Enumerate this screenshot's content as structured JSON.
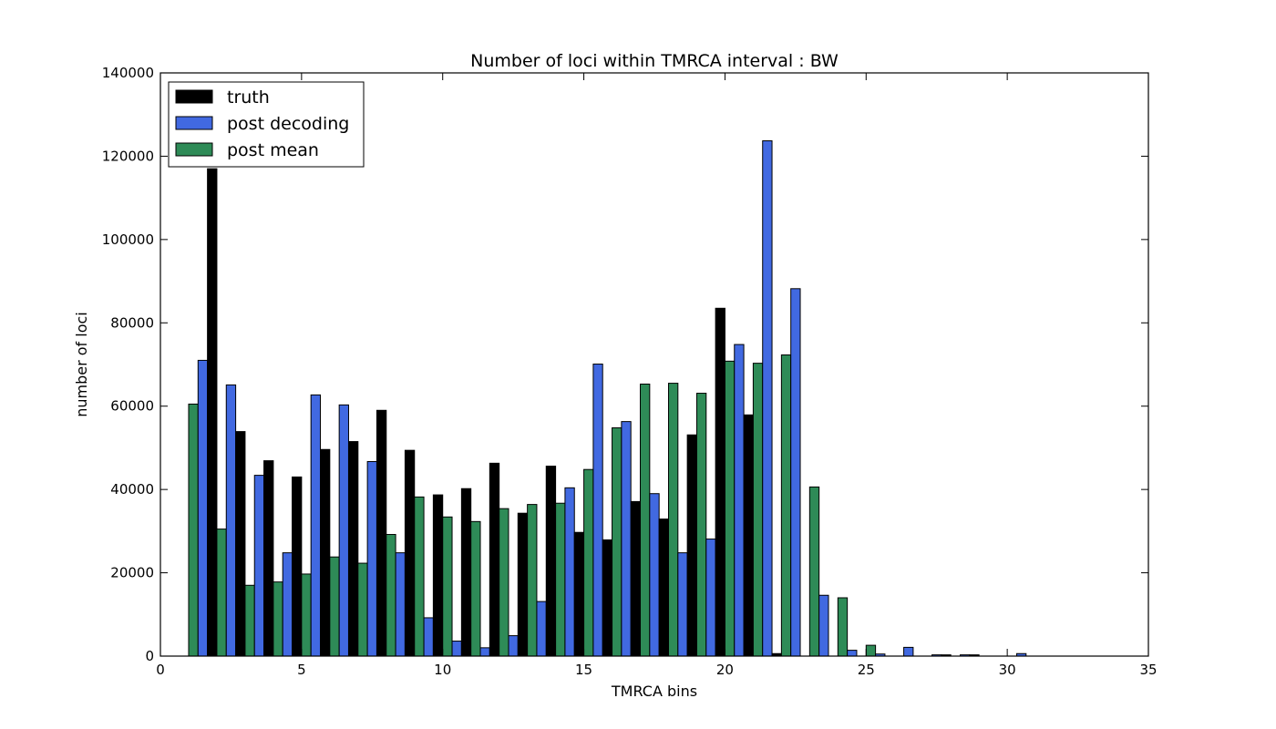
{
  "chart_data": {
    "type": "bar",
    "title": "Number of loci within TMRCA interval : BW",
    "xlabel": "TMRCA bins",
    "ylabel": "number of loci",
    "xlim": [
      0,
      35
    ],
    "ylim": [
      0,
      140000
    ],
    "xticks": [
      "0",
      "5",
      "10",
      "15",
      "20",
      "25",
      "30",
      "35"
    ],
    "yticks": [
      "0",
      "20000",
      "40000",
      "60000",
      "80000",
      "100000",
      "120000",
      "140000"
    ],
    "grid": false,
    "legend_position": "upper left",
    "bins": [
      1,
      2,
      3,
      4,
      5,
      6,
      7,
      8,
      9,
      10,
      11,
      12,
      13,
      14,
      15,
      16,
      17,
      18,
      19,
      20,
      21,
      22,
      23,
      24,
      25,
      26,
      27,
      28,
      29,
      30,
      31,
      32,
      33
    ],
    "series": [
      {
        "name": "post mean",
        "color": "#2e8b57",
        "values": [
          60500,
          30500,
          17000,
          17800,
          19700,
          23800,
          22300,
          29200,
          38200,
          33400,
          32300,
          35400,
          36400,
          36700,
          44800,
          54800,
          65300,
          65500,
          63100,
          70800,
          70300,
          72300,
          40600,
          14000,
          2600,
          0,
          0,
          0,
          0,
          0,
          0,
          0,
          0
        ]
      },
      {
        "name": "post decoding",
        "color": "#4169e1",
        "values": [
          71000,
          65100,
          43400,
          24800,
          62700,
          60300,
          46700,
          24800,
          9200,
          3600,
          2000,
          4900,
          13100,
          40400,
          70100,
          56300,
          39000,
          24800,
          28100,
          74800,
          123700,
          88200,
          14600,
          1400,
          500,
          2100,
          300,
          300,
          0,
          600,
          0,
          0,
          0
        ]
      },
      {
        "name": "truth",
        "color": "#000000",
        "values": [
          117000,
          53900,
          46900,
          43000,
          49600,
          51500,
          59000,
          49400,
          38700,
          40200,
          46300,
          34300,
          45600,
          29700,
          27900,
          37100,
          32900,
          53100,
          83500,
          57900,
          600,
          0,
          0,
          0,
          0,
          0,
          300,
          300,
          0,
          0,
          0,
          0,
          0
        ]
      }
    ]
  }
}
